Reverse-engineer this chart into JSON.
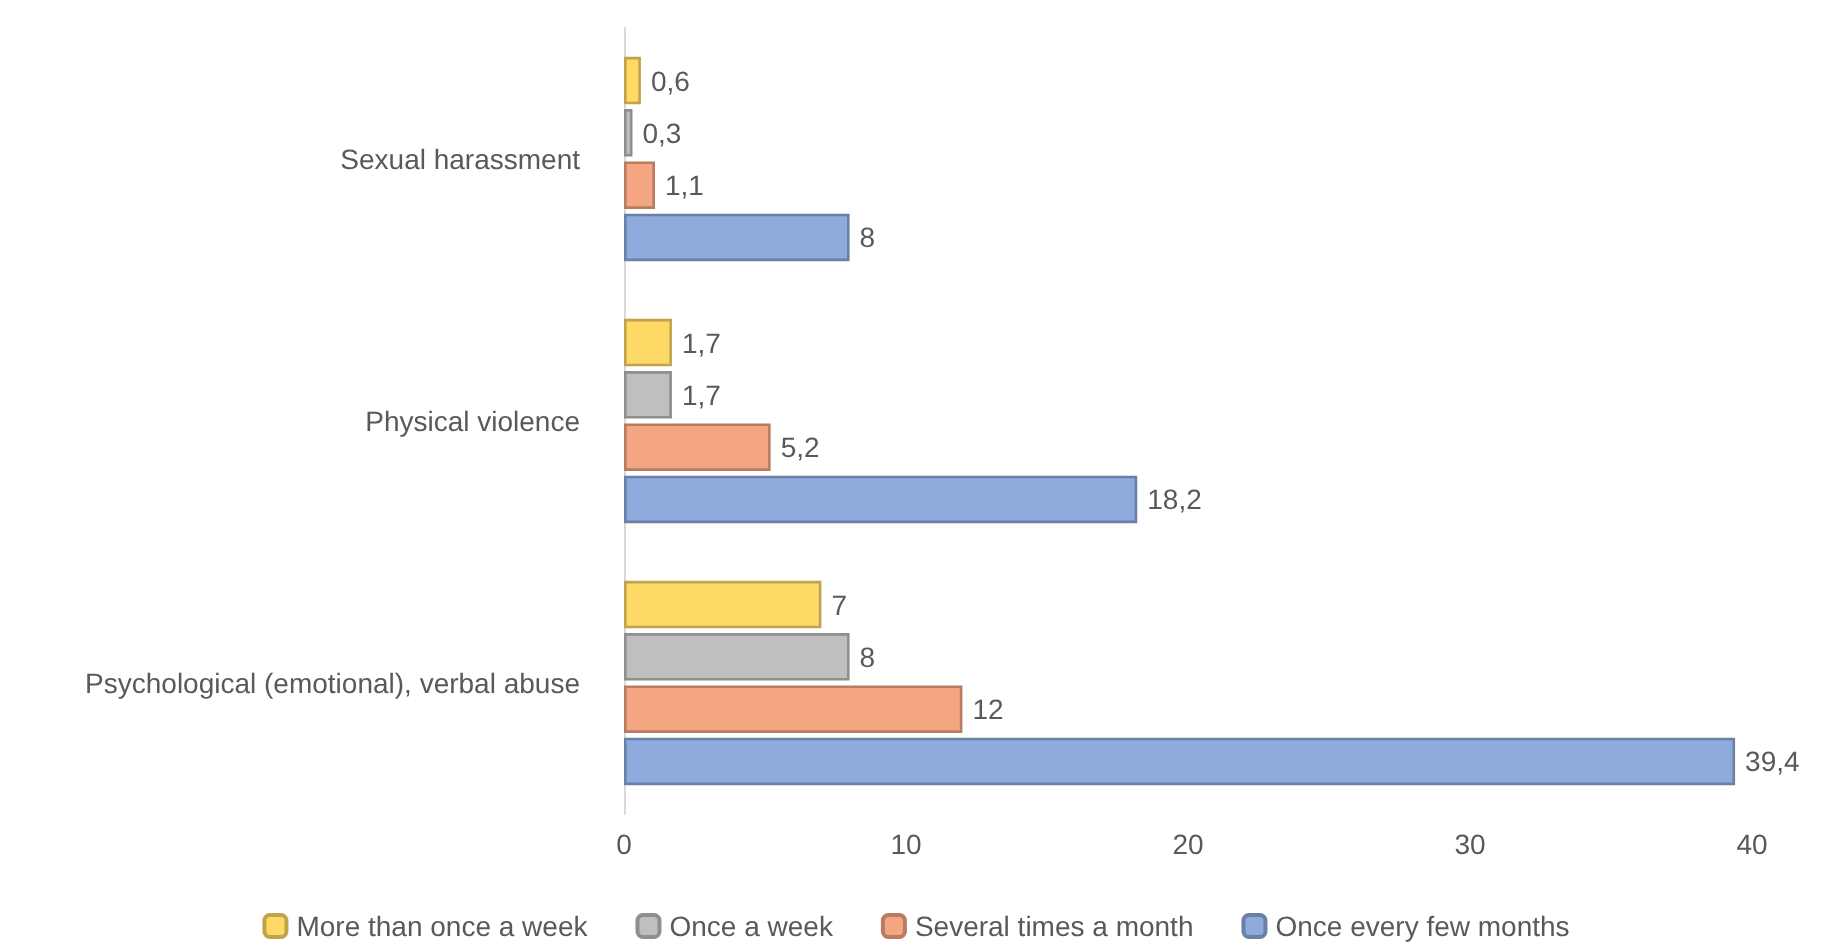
{
  "chart_data": {
    "type": "bar",
    "orientation": "horizontal",
    "categories": [
      "Sexual harassment",
      "Physical violence",
      "Psychological (emotional), verbal abuse"
    ],
    "series": [
      {
        "name": "More than once a week",
        "color": "#ffd966",
        "values": [
          0.6,
          1.7,
          7
        ],
        "value_labels": [
          "0,6",
          "1,7",
          "7"
        ]
      },
      {
        "name": "Once a week",
        "color": "#bfbfbf",
        "values": [
          0.3,
          1.7,
          8
        ],
        "value_labels": [
          "0,3",
          "1,7",
          "8"
        ]
      },
      {
        "name": "Several times a month",
        "color": "#f4a582",
        "values": [
          1.1,
          5.2,
          12
        ],
        "value_labels": [
          "1,1",
          "5,2",
          "12"
        ]
      },
      {
        "name": "Once every few months",
        "color": "#8faadc",
        "values": [
          8,
          18.2,
          39.4
        ],
        "value_labels": [
          "8",
          "18,2",
          "39,4"
        ]
      }
    ],
    "xlim": [
      0,
      40
    ],
    "xticks": [
      0,
      10,
      20,
      30,
      40
    ],
    "grid": false,
    "legend": "bottom"
  }
}
